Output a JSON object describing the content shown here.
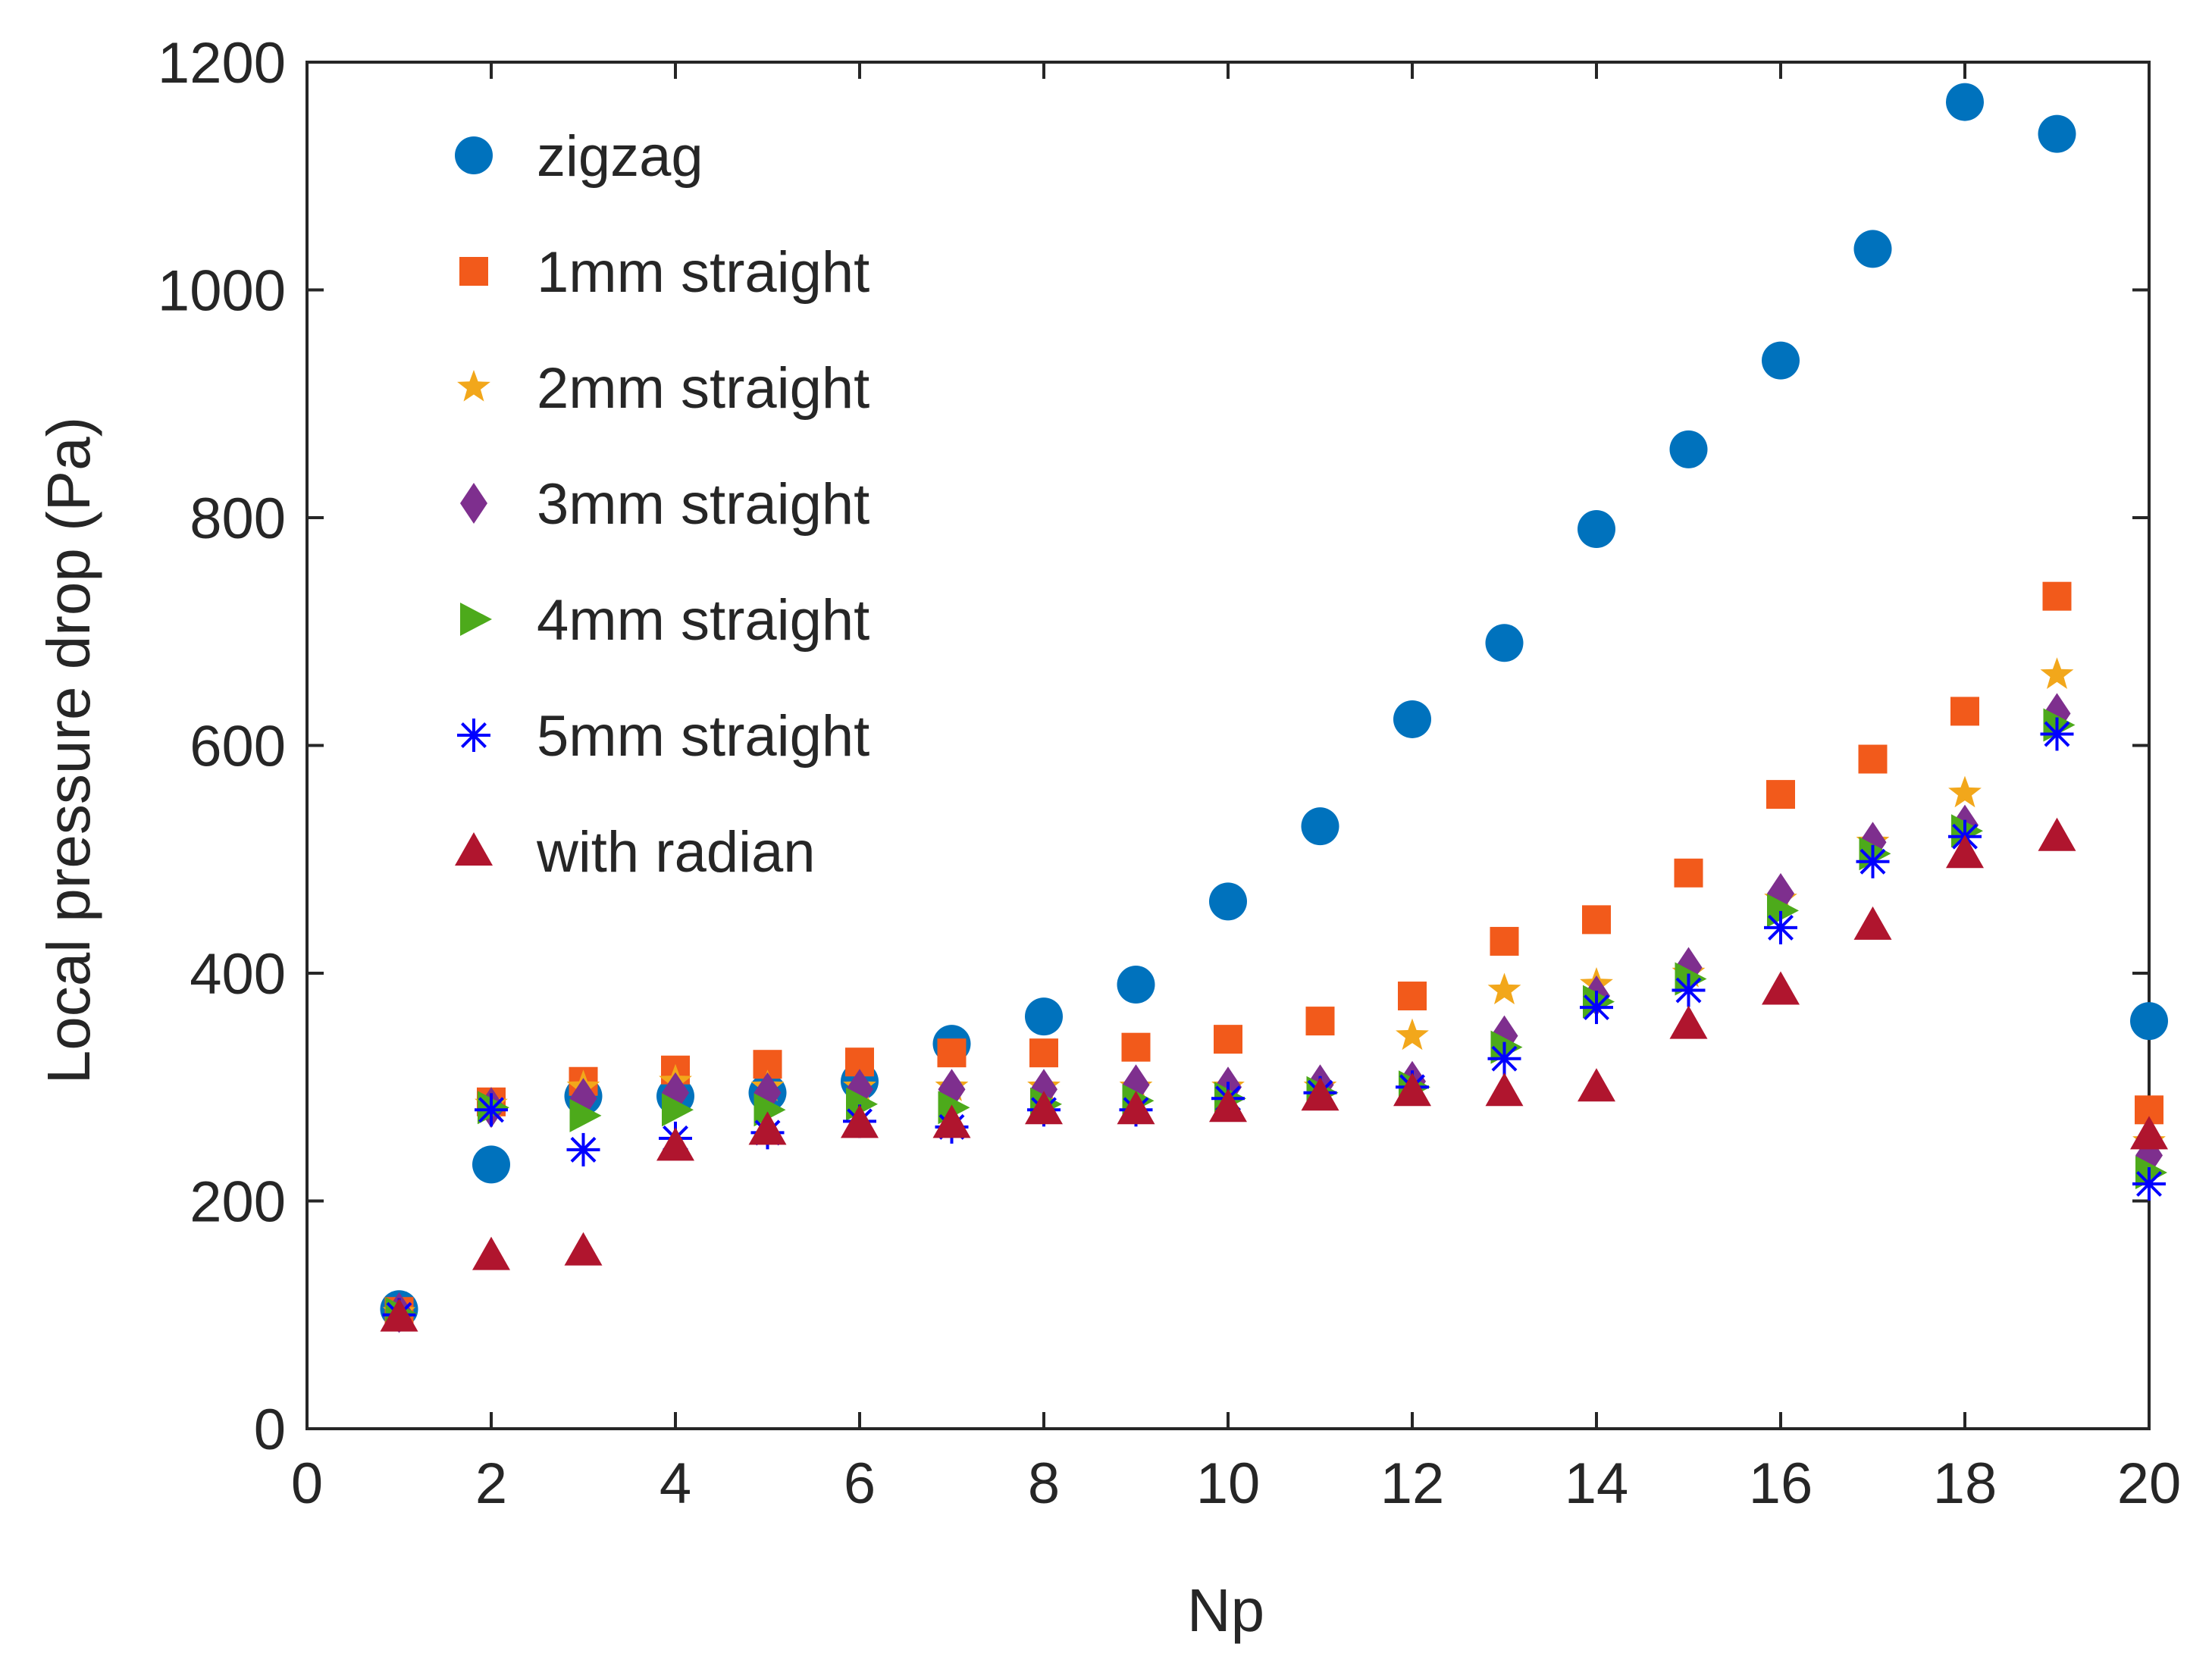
{
  "chart_data": {
    "type": "scatter",
    "title": "",
    "xlabel": "Np",
    "ylabel": "Local pressure drop (Pa)",
    "xlim": [
      0,
      20
    ],
    "ylim": [
      0,
      1200
    ],
    "xticks": [
      0,
      2,
      4,
      6,
      8,
      10,
      12,
      14,
      16,
      18,
      20
    ],
    "yticks": [
      0,
      200,
      400,
      600,
      800,
      1000,
      1200
    ],
    "legend_position": "top-left",
    "grid": false,
    "x": [
      1,
      2,
      3,
      4,
      5,
      6,
      7,
      8,
      9,
      10,
      11,
      12,
      13,
      14,
      15,
      16,
      17,
      18,
      19,
      20
    ],
    "series": [
      {
        "name": "zigzag",
        "marker": "circle",
        "color": "#0072BD",
        "values": [
          105,
          232,
          292,
          292,
          295,
          305,
          338,
          362,
          390,
          463,
          529,
          623,
          690,
          790,
          860,
          938,
          1036,
          1165,
          1137,
          358
        ]
      },
      {
        "name": "1mm straight",
        "marker": "square",
        "color": "#F25A1B",
        "values": [
          103,
          287,
          305,
          315,
          320,
          322,
          330,
          330,
          335,
          342,
          358,
          380,
          428,
          447,
          488,
          557,
          588,
          630,
          731,
          280
        ]
      },
      {
        "name": "2mm straight",
        "marker": "star",
        "color": "#F2A71B",
        "values": [
          102,
          285,
          300,
          305,
          300,
          300,
          300,
          300,
          300,
          300,
          300,
          345,
          385,
          390,
          400,
          465,
          515,
          558,
          662,
          252
        ]
      },
      {
        "name": "3mm straight",
        "marker": "diamond",
        "color": "#7E2F8E",
        "values": [
          102,
          282,
          290,
          295,
          295,
          298,
          298,
          298,
          302,
          300,
          302,
          305,
          345,
          380,
          405,
          470,
          515,
          530,
          628,
          240
        ]
      },
      {
        "name": "4mm straight",
        "marker": "triangle-right",
        "color": "#4DAA1B",
        "values": [
          101,
          282,
          275,
          280,
          280,
          285,
          282,
          285,
          288,
          290,
          295,
          300,
          335,
          375,
          395,
          455,
          505,
          525,
          618,
          225
        ]
      },
      {
        "name": "5mm straight",
        "marker": "asterisk",
        "color": "#0000FF",
        "values": [
          100,
          280,
          245,
          255,
          260,
          270,
          265,
          280,
          280,
          290,
          295,
          300,
          325,
          370,
          385,
          440,
          498,
          520,
          610,
          215
        ]
      },
      {
        "name": "with radian",
        "marker": "triangle-up",
        "color": "#B0152E",
        "values": [
          98,
          152,
          156,
          248,
          262,
          268,
          268,
          280,
          280,
          282,
          292,
          296,
          296,
          300,
          355,
          385,
          442,
          505,
          520,
          258
        ]
      }
    ]
  }
}
